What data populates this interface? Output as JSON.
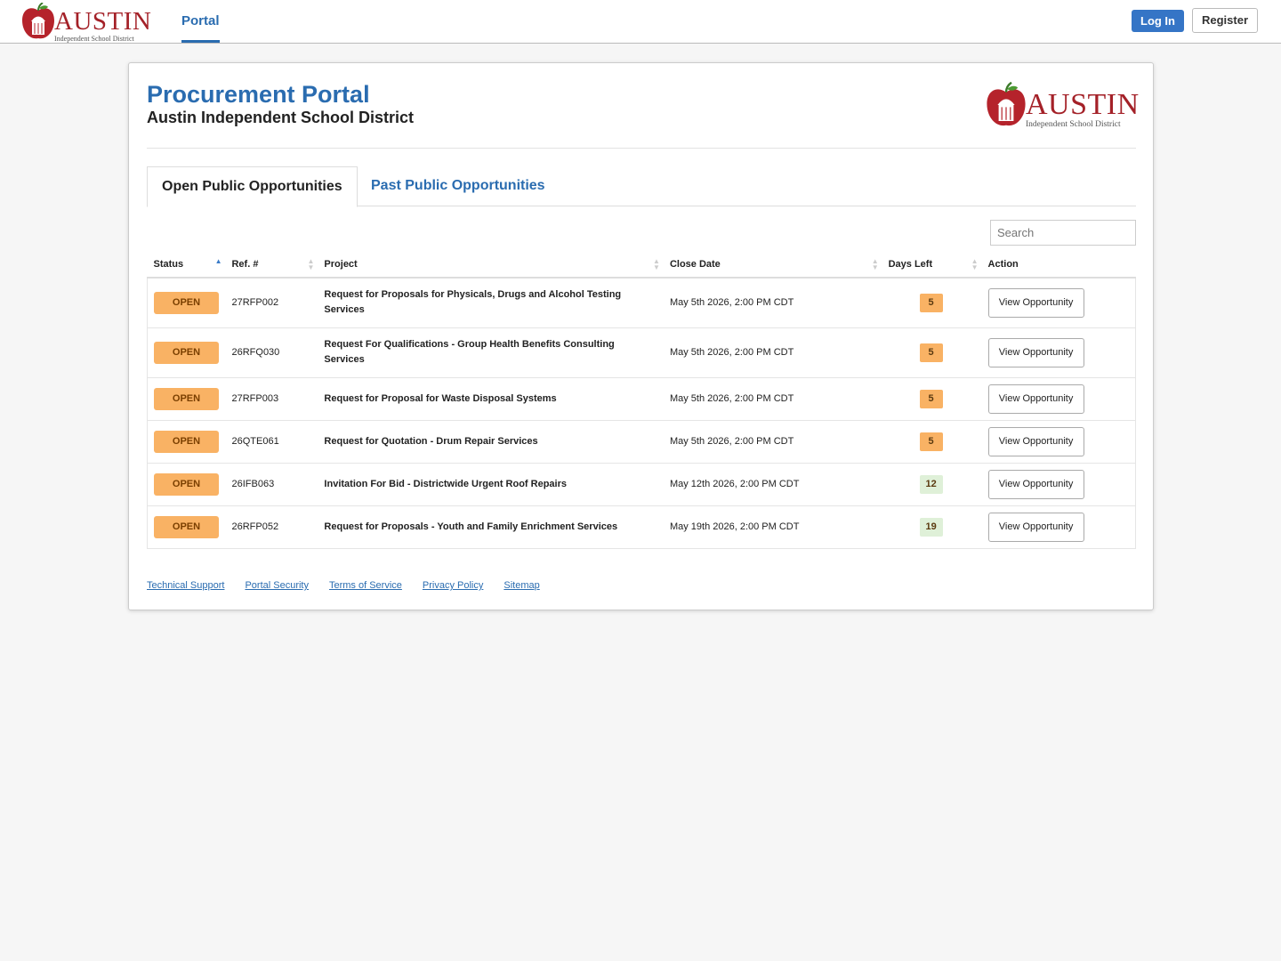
{
  "nav": {
    "logo": {
      "name": "AUSTIN",
      "tagline": "Independent School District"
    },
    "links": [
      "Portal"
    ],
    "buttons": [
      "Log In",
      "Register"
    ]
  },
  "header": {
    "title": "Procurement Portal",
    "subtitle": "Austin Independent School District"
  },
  "tabs": [
    "Open Public Opportunities",
    "Past Public Opportunities"
  ],
  "search": {
    "placeholder": "Search"
  },
  "table": {
    "columns": [
      "Status",
      "Ref. #",
      "Project",
      "Close Date",
      "Days Left",
      "Action"
    ],
    "rows": [
      {
        "status": "OPEN",
        "ref": "27RFP002",
        "project": "Request for Proposals for Physicals, Drugs and Alcohol Testing Services",
        "close_date": "May 5th 2026, 2:00 PM CDT",
        "days_left": 5,
        "days_left_color": "#f9b264",
        "action": "View Opportunity"
      },
      {
        "status": "OPEN",
        "ref": "26RFQ030",
        "project": "Request For Qualifications - Group Health Benefits Consulting Services",
        "close_date": "May 5th 2026, 2:00 PM CDT",
        "days_left": 5,
        "days_left_color": "#f9b264",
        "action": "View Opportunity"
      },
      {
        "status": "OPEN",
        "ref": "27RFP003",
        "project": "Request for Proposal for Waste Disposal Systems",
        "close_date": "May 5th 2026, 2:00 PM CDT",
        "days_left": 5,
        "days_left_color": "#f9b264",
        "action": "View Opportunity"
      },
      {
        "status": "OPEN",
        "ref": "26QTE061",
        "project": "Request for Quotation - Drum Repair Services",
        "close_date": "May 5th 2026, 2:00 PM CDT",
        "days_left": 5,
        "days_left_color": "#f9b264",
        "action": "View Opportunity"
      },
      {
        "status": "OPEN",
        "ref": "26IFB063",
        "project": "Invitation For Bid - Districtwide Urgent Roof Repairs",
        "close_date": "May 12th 2026, 2:00 PM CDT",
        "days_left": 12,
        "days_left_color": "#dff0d8",
        "action": "View Opportunity"
      },
      {
        "status": "OPEN",
        "ref": "26RFP052",
        "project": "Request for Proposals - Youth and Family Enrichment Services",
        "close_date": "May 19th 2026, 2:00 PM CDT",
        "days_left": 19,
        "days_left_color": "#dff0d8",
        "action": "View Opportunity"
      }
    ]
  },
  "footer": {
    "links": [
      "Technical Support",
      "Portal Security",
      "Terms of Service",
      "Privacy Policy",
      "Sitemap"
    ]
  }
}
